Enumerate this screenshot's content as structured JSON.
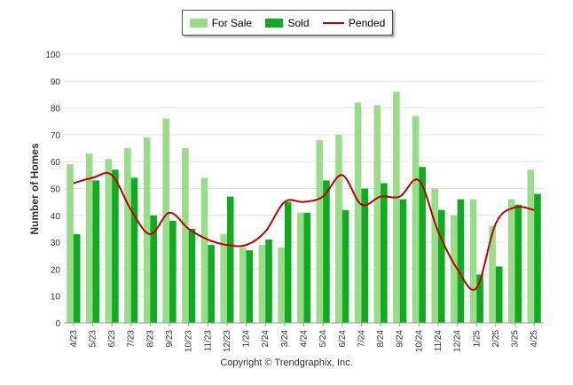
{
  "chart_data": {
    "type": "bar",
    "ylabel": "Number of Homes",
    "xlabel": "",
    "ylim": [
      0,
      100
    ],
    "yticks": [
      0,
      10,
      20,
      30,
      40,
      50,
      60,
      70,
      80,
      90,
      100
    ],
    "grid": true,
    "legend_position": "top-center",
    "categories": [
      "4/23",
      "5/23",
      "6/23",
      "7/23",
      "8/23",
      "9/23",
      "10/23",
      "11/23",
      "12/23",
      "1/24",
      "2/24",
      "3/24",
      "4/24",
      "5/24",
      "6/24",
      "7/24",
      "8/24",
      "9/24",
      "10/24",
      "11/24",
      "12/24",
      "1/25",
      "2/25",
      "3/25",
      "4/25"
    ],
    "series": [
      {
        "name": "For Sale",
        "type": "bar",
        "color": "#99dd88",
        "values": [
          59,
          63,
          61,
          65,
          69,
          76,
          65,
          54,
          33,
          28,
          29,
          28,
          41,
          68,
          70,
          82,
          81,
          86,
          77,
          50,
          40,
          46,
          36,
          46,
          57
        ]
      },
      {
        "name": "Sold",
        "type": "bar",
        "color": "#11aa22",
        "values": [
          33,
          53,
          57,
          54,
          40,
          38,
          35,
          29,
          47,
          27,
          31,
          45,
          41,
          53,
          42,
          50,
          52,
          46,
          58,
          42,
          46,
          18,
          21,
          44,
          48
        ]
      },
      {
        "name": "Pended",
        "type": "line",
        "color": "#c00000",
        "values": [
          52,
          54,
          55,
          42,
          33,
          41,
          35,
          31,
          29,
          29,
          34,
          45,
          45,
          47,
          55,
          44,
          47,
          47,
          53,
          34,
          20,
          13,
          37,
          43,
          42
        ]
      }
    ]
  },
  "copyright": "Copyright © Trendgraphix, Inc."
}
